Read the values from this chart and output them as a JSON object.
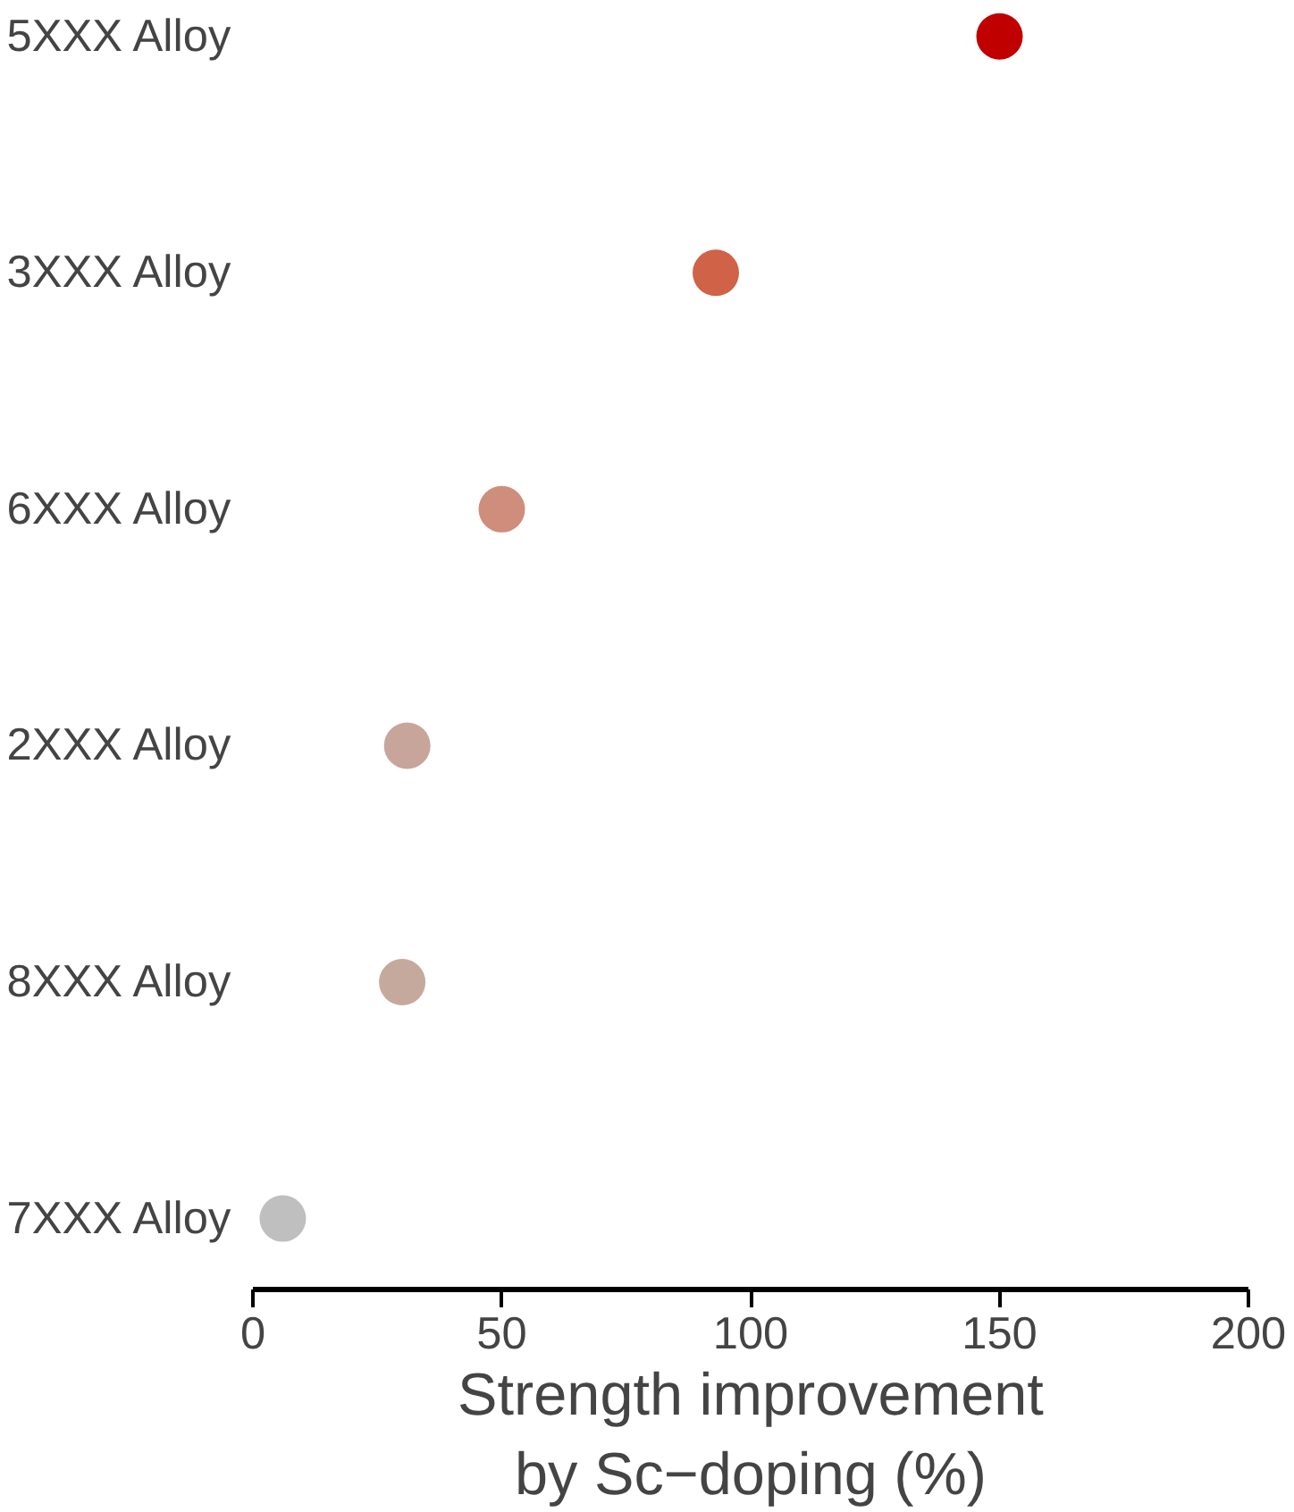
{
  "chart_data": {
    "type": "scatter",
    "xlabel": "Strength improvement\nby Sc−doping (%)",
    "categories": [
      "5XXX Alloy",
      "3XXX Alloy",
      "6XXX Alloy",
      "2XXX Alloy",
      "8XXX Alloy",
      "7XXX Alloy"
    ],
    "values": [
      150,
      93,
      50,
      31,
      30,
      6
    ],
    "colors": [
      "#c00000",
      "#cf6247",
      "#cf8d7b",
      "#c8a59a",
      "#c6a99d",
      "#bfbfbf"
    ],
    "orientation": "horizontal",
    "xlim": [
      0,
      200
    ],
    "xticks": [
      0,
      50,
      100,
      150,
      200
    ],
    "grid": false,
    "marker": "circle"
  }
}
